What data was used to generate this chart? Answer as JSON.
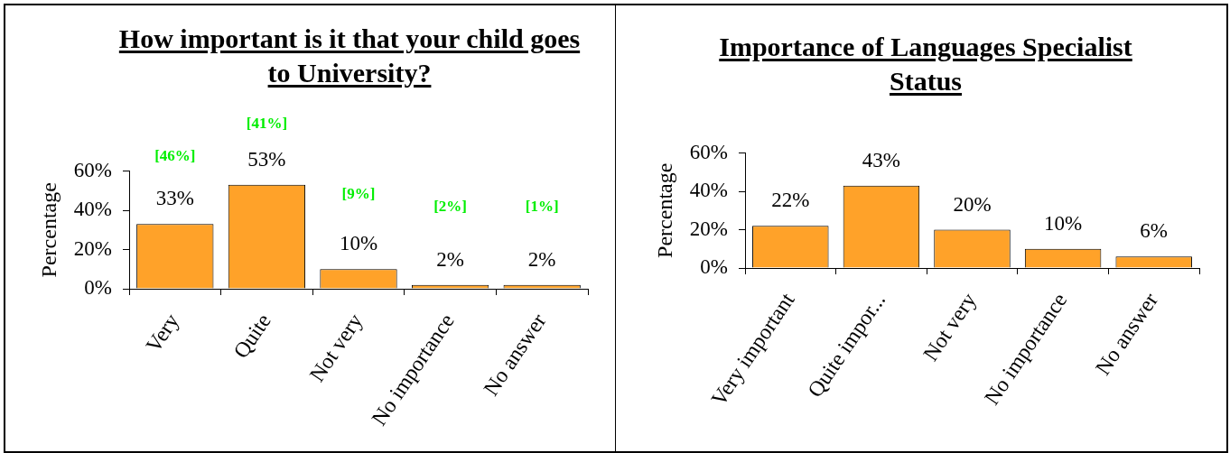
{
  "chart_data": [
    {
      "type": "bar",
      "title": "How important is it that your child goes to University?",
      "ylabel": "Percentage",
      "categories": [
        "Very",
        "Quite",
        "Not very",
        "No importance",
        "No answer"
      ],
      "values": [
        33,
        53,
        10,
        2,
        2
      ],
      "value_labels": [
        "33%",
        "53%",
        "10%",
        "2%",
        "2%"
      ],
      "color": "#ffa229",
      "ylim": [
        0,
        60
      ],
      "yticks": [
        {
          "value": 0,
          "label": "0%"
        },
        {
          "value": 20,
          "label": "20%"
        },
        {
          "value": 40,
          "label": "40%"
        },
        {
          "value": 60,
          "label": "60%"
        }
      ],
      "annotations": [
        "[46%]",
        "[41%]",
        "[9%]",
        "[2%]",
        "[1%]"
      ]
    },
    {
      "type": "bar",
      "title": "Importance of Languages Specialist Status",
      "ylabel": "Percentage",
      "categories": [
        "Very important",
        "Quite impor...",
        "Not very",
        "No importance",
        "No answer"
      ],
      "values": [
        22,
        43,
        20,
        10,
        6
      ],
      "value_labels": [
        "22%",
        "43%",
        "20%",
        "10%",
        "6%"
      ],
      "color": "#ffa229",
      "ylim": [
        0,
        60
      ],
      "yticks": [
        {
          "value": 0,
          "label": "0%"
        },
        {
          "value": 20,
          "label": "20%"
        },
        {
          "value": 40,
          "label": "40%"
        },
        {
          "value": 60,
          "label": "60%"
        }
      ]
    }
  ]
}
